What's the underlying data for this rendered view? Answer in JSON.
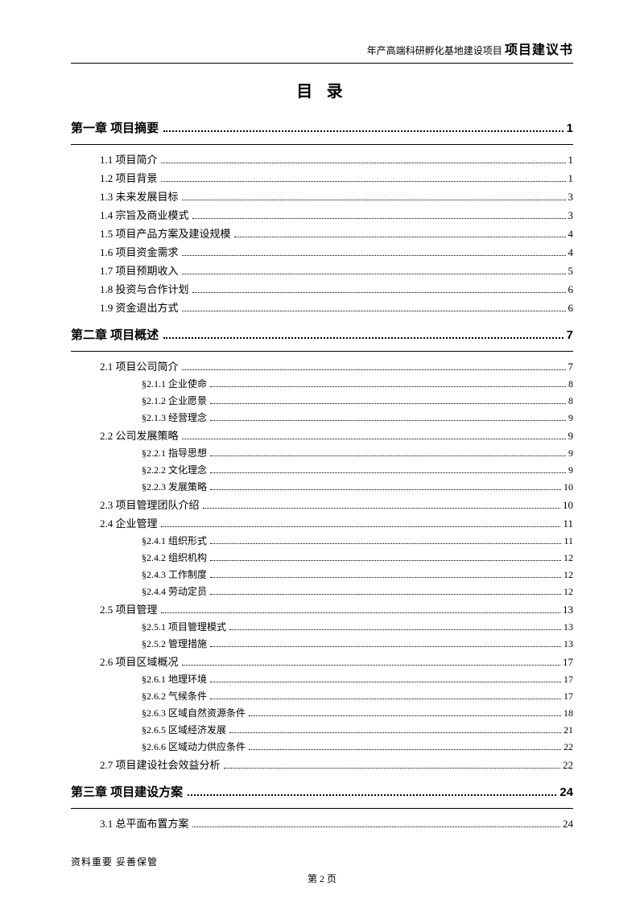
{
  "header": {
    "small": "年产高端科研孵化基地建设项目",
    "big": "项目建议书"
  },
  "toc_title": "目 录",
  "chapters": [
    {
      "label": "第一章 项目摘要",
      "page": "1",
      "sections": [
        {
          "label": "1.1 项目简介",
          "page": "1"
        },
        {
          "label": "1.2 项目背景",
          "page": "1"
        },
        {
          "label": "1.3 未来发展目标",
          "page": "3"
        },
        {
          "label": "1.4 宗旨及商业模式",
          "page": "3"
        },
        {
          "label": "1.5 项目产品方案及建设规模",
          "page": "4"
        },
        {
          "label": "1.6 项目资金需求",
          "page": "4"
        },
        {
          "label": "1.7 项目预期收入",
          "page": "5"
        },
        {
          "label": "1.8 投资与合作计划",
          "page": "6"
        },
        {
          "label": "1.9 资金退出方式",
          "page": "6"
        }
      ]
    },
    {
      "label": "第二章 项目概述",
      "page": "7",
      "sections": [
        {
          "label": "2.1 项目公司简介",
          "page": "7",
          "sub": [
            {
              "label": "§2.1.1 企业使命",
              "page": "8"
            },
            {
              "label": "§2.1.2 企业愿景",
              "page": "8"
            },
            {
              "label": "§2.1.3 经营理念",
              "page": "9"
            }
          ]
        },
        {
          "label": "2.2 公司发展策略",
          "page": "9",
          "sub": [
            {
              "label": "§2.2.1 指导思想",
              "page": "9"
            },
            {
              "label": "§2.2.2 文化理念",
              "page": "9"
            },
            {
              "label": "§2.2.3 发展策略",
              "page": "10"
            }
          ]
        },
        {
          "label": "2.3 项目管理团队介绍",
          "page": "10"
        },
        {
          "label": "2.4 企业管理",
          "page": "11",
          "sub": [
            {
              "label": "§2.4.1 组织形式",
              "page": "11"
            },
            {
              "label": "§2.4.2 组织机构",
              "page": "12"
            },
            {
              "label": "§2.4.3 工作制度",
              "page": "12"
            },
            {
              "label": "§2.4.4 劳动定员",
              "page": "12"
            }
          ]
        },
        {
          "label": "2.5 项目管理",
          "page": "13",
          "sub": [
            {
              "label": "§2.5.1 项目管理模式",
              "page": "13"
            },
            {
              "label": "§2.5.2 管理措施",
              "page": "13"
            }
          ]
        },
        {
          "label": "2.6 项目区域概况",
          "page": "17",
          "sub": [
            {
              "label": "§2.6.1 地理环境",
              "page": "17"
            },
            {
              "label": "§2.6.2 气候条件",
              "page": "17"
            },
            {
              "label": "§2.6.3 区域自然资源条件",
              "page": "18"
            },
            {
              "label": "§2.6.5 区域经济发展",
              "page": "21"
            },
            {
              "label": "§2.6.6 区域动力供应条件",
              "page": "22"
            }
          ]
        },
        {
          "label": "2.7 项目建设社会效益分析",
          "page": "22"
        }
      ]
    },
    {
      "label": "第三章 项目建设方案",
      "page": "24",
      "sections": [
        {
          "label": "3.1 总平面布置方案",
          "page": "24"
        }
      ]
    }
  ],
  "footer": {
    "note": "资料重要  妥善保管",
    "pagenum": "第 2 页"
  }
}
